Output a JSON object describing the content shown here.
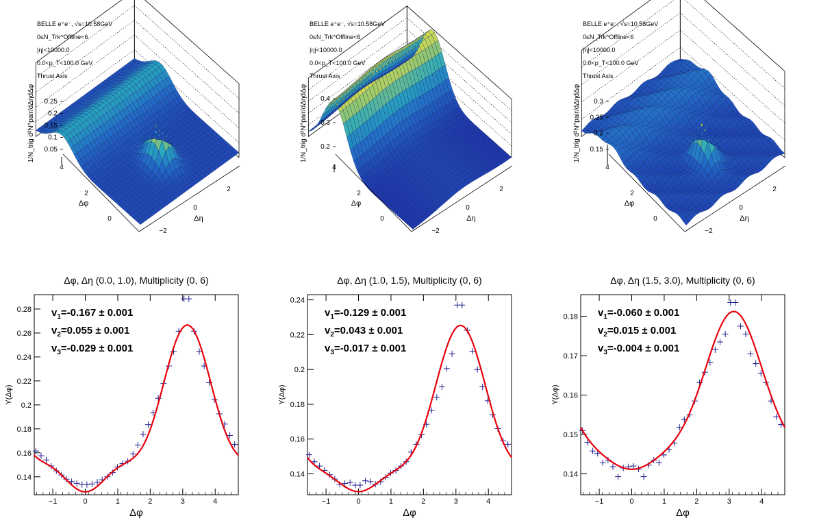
{
  "colors": {
    "fit_line": "#e8000b",
    "data_points": "#1b1b8f",
    "surface_low": "#1f3aa8",
    "surface_high": "#f2e33a"
  },
  "surfaces": [
    {
      "info": [
        "BELLE e⁺e⁻, √s=10.58GeV",
        "0≤N_Trk^Offline<6",
        "|η|<10000.0",
        "0.0<p_T<100.0 GeV",
        "Thrust Axis"
      ],
      "zlabel": "1/N_trig d²N^pair/dΔηdΔφ",
      "zticks": [
        "0.25",
        "0.2",
        "0.15",
        "0.1",
        "0.05"
      ],
      "phi_ticks": [
        "4",
        "2",
        "0"
      ],
      "phi_label": "Δφ",
      "eta_ticks": [
        "2",
        "0",
        "−2"
      ],
      "eta_label": "Δη"
    },
    {
      "info": [
        "BELLE e⁺e⁻, √s=10.58GeV",
        "0≤N_Trk^Offline<6",
        "|η|<10000.0",
        "0.0<p_T<100.0 GeV",
        "Thrust Axis"
      ],
      "zlabel": "1/N_trig d²N^pair/dΔηdΔφ",
      "zticks": [
        "0.4",
        "0.3",
        "0.2"
      ],
      "phi_ticks": [
        "4",
        "2",
        "0"
      ],
      "phi_label": "Δφ",
      "eta_ticks": [
        "2",
        "0",
        "−2"
      ],
      "eta_label": "Δη"
    },
    {
      "info": [
        "BELLE e⁺e⁻, √s=10.58GeV",
        "0≤N_Trk^Offline<6",
        "|η|<10000.0",
        "0.0<p_T<100.0 GeV",
        "Thrust Axis"
      ],
      "zlabel": "1/N_trig d²N^pair/dΔηdΔφ",
      "zticks": [
        "0.3",
        "0.25",
        "0.2",
        "0.15"
      ],
      "phi_ticks": [
        "4",
        "2",
        "0"
      ],
      "phi_label": "Δφ",
      "eta_ticks": [
        "2",
        "0",
        "−2"
      ],
      "eta_label": "Δη"
    }
  ],
  "chart_data": [
    {
      "type": "scatter",
      "title": "Δφ, Δη (0.0, 1.0), Multiplicity (0, 6)",
      "xlabel": "Δφ",
      "ylabel": "Y(Δφ)",
      "xlim": [
        -1.571,
        4.712
      ],
      "ylim": [
        0.125,
        0.292
      ],
      "xticks": [
        "−1",
        "0",
        "1",
        "2",
        "3",
        "4"
      ],
      "yticks": [
        "0.14",
        "0.16",
        "0.18",
        "0.2",
        "0.22",
        "0.24",
        "0.26",
        "0.28"
      ],
      "fit": {
        "a0": 0.1775,
        "v1": -0.167,
        "v2": 0.055,
        "v3": -0.029
      },
      "fit_text": [
        "v1=-0.167 ± 0.001",
        "v2=0.055 ± 0.001",
        "v3=-0.029 ± 0.001"
      ],
      "points": [
        [
          -1.52,
          0.1615
        ],
        [
          -1.36,
          0.1575
        ],
        [
          -1.2,
          0.154
        ],
        [
          -1.05,
          0.149
        ],
        [
          -0.89,
          0.145
        ],
        [
          -0.73,
          0.1415
        ],
        [
          -0.58,
          0.138
        ],
        [
          -0.42,
          0.136
        ],
        [
          -0.26,
          0.1345
        ],
        [
          -0.1,
          0.1335
        ],
        [
          0.05,
          0.1335
        ],
        [
          0.21,
          0.134
        ],
        [
          0.37,
          0.1355
        ],
        [
          0.52,
          0.1375
        ],
        [
          0.68,
          0.14
        ],
        [
          0.84,
          0.1435
        ],
        [
          0.99,
          0.148
        ],
        [
          1.15,
          0.151
        ],
        [
          1.31,
          0.153
        ],
        [
          1.47,
          0.159
        ],
        [
          1.62,
          0.1665
        ],
        [
          1.78,
          0.1755
        ],
        [
          1.94,
          0.1835
        ],
        [
          2.09,
          0.1935
        ],
        [
          2.25,
          0.2055
        ],
        [
          2.41,
          0.218
        ],
        [
          2.57,
          0.2325
        ],
        [
          2.72,
          0.2445
        ],
        [
          2.88,
          0.2615
        ],
        [
          3.04,
          0.2885
        ],
        [
          3.19,
          0.2885
        ],
        [
          3.35,
          0.2615
        ],
        [
          3.51,
          0.2445
        ],
        [
          3.66,
          0.2325
        ],
        [
          3.82,
          0.2185
        ],
        [
          3.98,
          0.2045
        ],
        [
          4.13,
          0.1925
        ],
        [
          4.29,
          0.184
        ],
        [
          4.45,
          0.1745
        ],
        [
          4.6,
          0.167
        ]
      ]
    },
    {
      "type": "scatter",
      "title": "Δφ, Δη (1.0, 1.5), Multiplicity (0, 6)",
      "xlabel": "Δφ",
      "ylabel": "Y(Δφ)",
      "xlim": [
        -1.571,
        4.712
      ],
      "ylim": [
        0.128,
        0.243
      ],
      "xticks": [
        "−1",
        "0",
        "1",
        "2",
        "3",
        "4"
      ],
      "yticks": [
        "0.14",
        "0.16",
        "0.18",
        "0.2",
        "0.22",
        "0.24"
      ],
      "fit": {
        "a0": 0.1635,
        "v1": -0.129,
        "v2": 0.043,
        "v3": -0.017
      },
      "fit_text": [
        "v1=-0.129 ± 0.001",
        "v2=0.043 ± 0.001",
        "v3=-0.017 ± 0.001"
      ],
      "points": [
        [
          -1.52,
          0.151
        ],
        [
          -1.36,
          0.147
        ],
        [
          -1.2,
          0.1445
        ],
        [
          -1.05,
          0.142
        ],
        [
          -0.89,
          0.1395
        ],
        [
          -0.73,
          0.137
        ],
        [
          -0.58,
          0.134
        ],
        [
          -0.42,
          0.1345
        ],
        [
          -0.26,
          0.135
        ],
        [
          -0.1,
          0.1335
        ],
        [
          0.05,
          0.1335
        ],
        [
          0.21,
          0.136
        ],
        [
          0.37,
          0.1355
        ],
        [
          0.52,
          0.134
        ],
        [
          0.68,
          0.1355
        ],
        [
          0.84,
          0.138
        ],
        [
          0.99,
          0.1405
        ],
        [
          1.15,
          0.142
        ],
        [
          1.31,
          0.1445
        ],
        [
          1.47,
          0.147
        ],
        [
          1.62,
          0.1525
        ],
        [
          1.78,
          0.157
        ],
        [
          1.94,
          0.1625
        ],
        [
          2.09,
          0.1685
        ],
        [
          2.25,
          0.1765
        ],
        [
          2.41,
          0.184
        ],
        [
          2.57,
          0.19
        ],
        [
          2.72,
          0.2005
        ],
        [
          2.88,
          0.209
        ],
        [
          3.04,
          0.237
        ],
        [
          3.19,
          0.237
        ],
        [
          3.35,
          0.2225
        ],
        [
          3.51,
          0.2105
        ],
        [
          3.66,
          0.2
        ],
        [
          3.82,
          0.19
        ],
        [
          3.98,
          0.182
        ],
        [
          4.13,
          0.174
        ],
        [
          4.29,
          0.166
        ],
        [
          4.45,
          0.159
        ],
        [
          4.6,
          0.157
        ]
      ]
    },
    {
      "type": "scatter",
      "title": "Δφ, Δη (1.5, 3.0), Multiplicity (0, 6)",
      "xlabel": "Δφ",
      "ylabel": "Y(Δφ)",
      "xlim": [
        -1.571,
        4.712
      ],
      "ylim": [
        0.1347,
        0.1855
      ],
      "xticks": [
        "−1",
        "0",
        "1",
        "2",
        "3",
        "4"
      ],
      "yticks": [
        "0.14",
        "0.15",
        "0.16",
        "0.17",
        "0.18"
      ],
      "fit": {
        "a0": 0.1565,
        "v1": -0.06,
        "v2": 0.015,
        "v3": -0.004
      },
      "fit_text": [
        "v1=-0.060 ± 0.001",
        "v2=0.015 ± 0.001",
        "v3=-0.004 ± 0.001"
      ],
      "points": [
        [
          -1.52,
          0.151
        ],
        [
          -1.36,
          0.148
        ],
        [
          -1.2,
          0.1458
        ],
        [
          -1.05,
          0.1452
        ],
        [
          -0.89,
          0.1428
        ],
        [
          -0.73,
          0.1435
        ],
        [
          -0.58,
          0.1418
        ],
        [
          -0.42,
          0.1393
        ],
        [
          -0.26,
          0.1415
        ],
        [
          -0.1,
          0.1418
        ],
        [
          0.05,
          0.142
        ],
        [
          0.21,
          0.1412
        ],
        [
          0.37,
          0.1393
        ],
        [
          0.52,
          0.1422
        ],
        [
          0.68,
          0.1435
        ],
        [
          0.84,
          0.1428
        ],
        [
          0.99,
          0.1448
        ],
        [
          1.15,
          0.1462
        ],
        [
          1.31,
          0.1478
        ],
        [
          1.47,
          0.1518
        ],
        [
          1.62,
          0.1538
        ],
        [
          1.78,
          0.155
        ],
        [
          1.94,
          0.1585
        ],
        [
          2.09,
          0.1632
        ],
        [
          2.25,
          0.1658
        ],
        [
          2.41,
          0.1683
        ],
        [
          2.57,
          0.1715
        ],
        [
          2.72,
          0.1735
        ],
        [
          2.88,
          0.1755
        ],
        [
          3.04,
          0.1835
        ],
        [
          3.19,
          0.1835
        ],
        [
          3.35,
          0.1775
        ],
        [
          3.51,
          0.1755
        ],
        [
          3.66,
          0.1705
        ],
        [
          3.82,
          0.168
        ],
        [
          3.98,
          0.1655
        ],
        [
          4.13,
          0.1632
        ],
        [
          4.29,
          0.1585
        ],
        [
          4.45,
          0.1545
        ],
        [
          4.6,
          0.1525
        ]
      ]
    }
  ]
}
